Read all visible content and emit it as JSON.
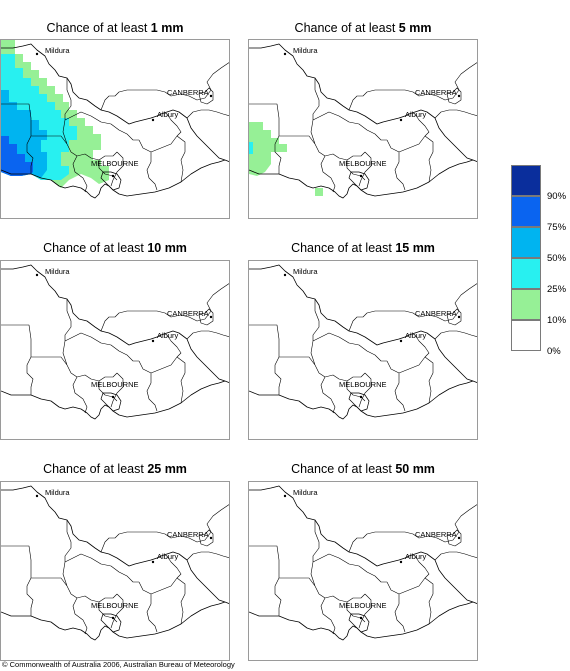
{
  "panels": [
    {
      "prefix": "Chance of at least ",
      "amount": "1 mm"
    },
    {
      "prefix": "Chance of at least ",
      "amount": "5 mm"
    },
    {
      "prefix": "Chance of at least ",
      "amount": "10 mm"
    },
    {
      "prefix": "Chance of at least ",
      "amount": "15 mm"
    },
    {
      "prefix": "Chance of at least ",
      "amount": "25 mm"
    },
    {
      "prefix": "Chance of at least ",
      "amount": "50 mm"
    }
  ],
  "places": {
    "mildura": "Mildura",
    "canberra": "CANBERRA",
    "albury": "Albury",
    "melbourne": "MELBOURNE"
  },
  "legend": {
    "labels": [
      "90%",
      "75%",
      "50%",
      "25%",
      "10%",
      "0%"
    ],
    "colors": [
      "#0a2e9c",
      "#0a64f0",
      "#00b4f0",
      "#28f0f0",
      "#96f096",
      "#ffffff"
    ]
  },
  "copyright": "© Commonwealth of Australia 2006, Australian Bureau of Meteorology"
}
